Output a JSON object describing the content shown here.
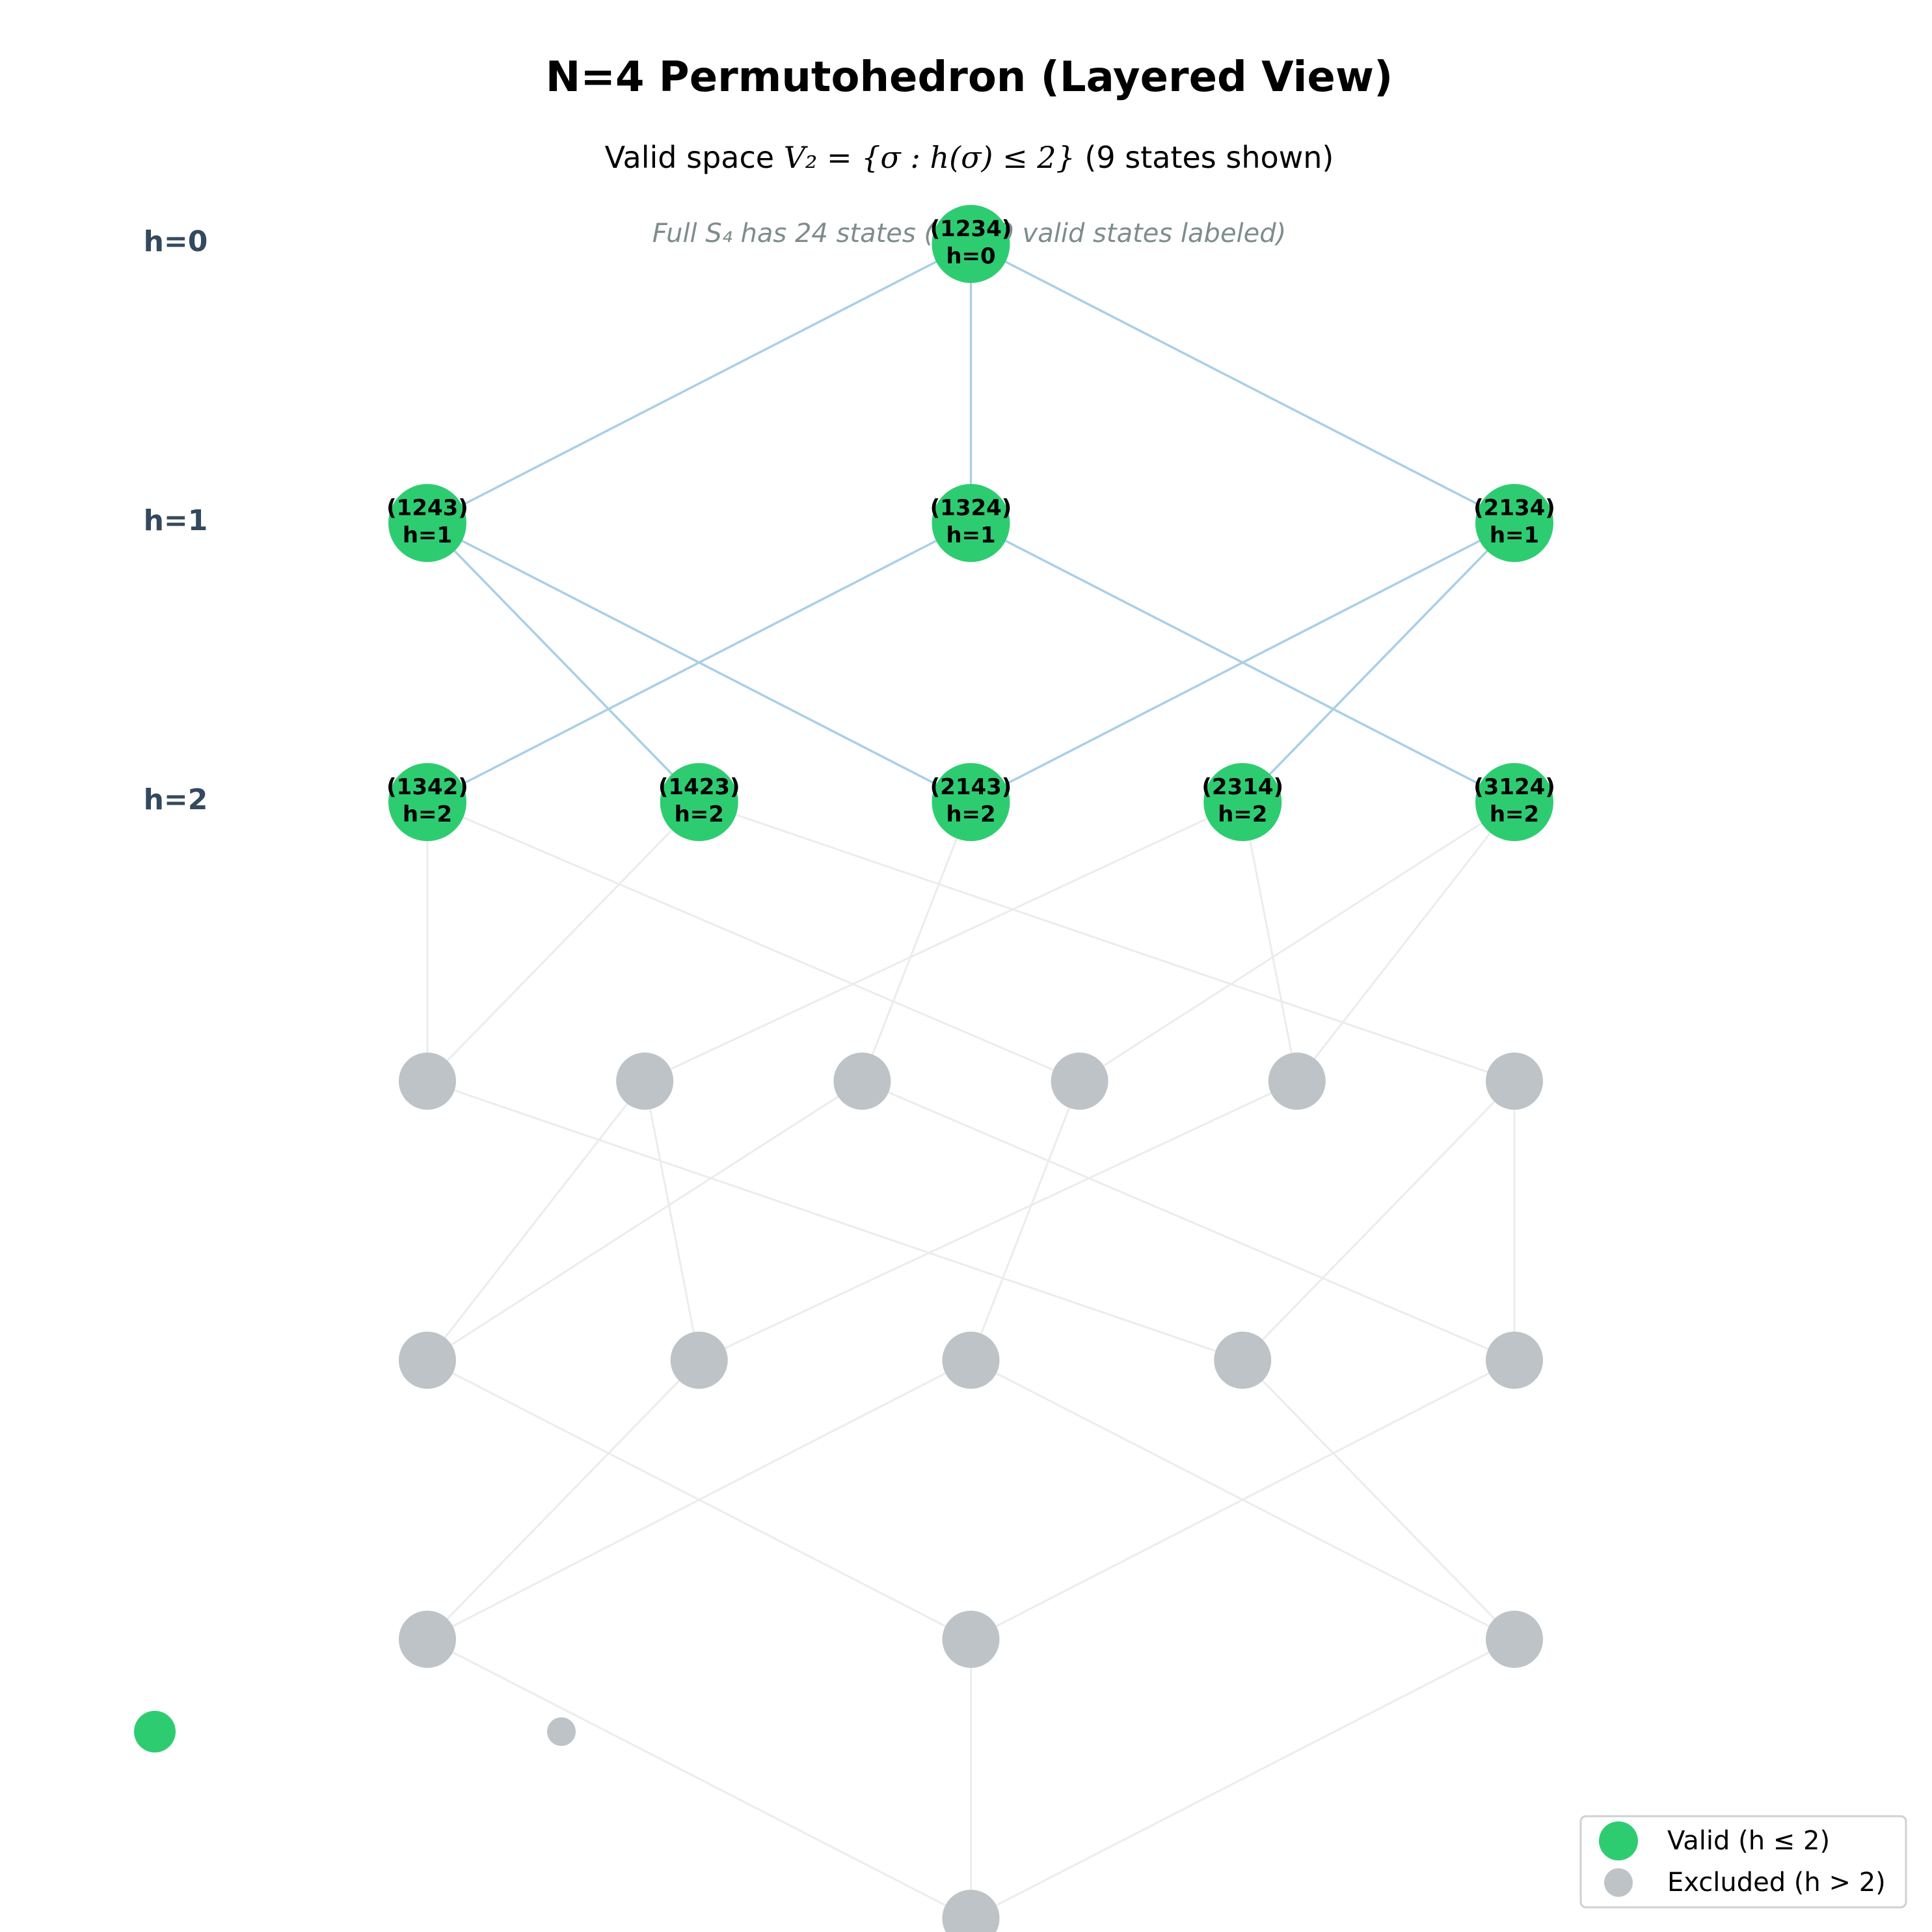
{
  "title": "N=4 Permutohedron (Layered View)",
  "subtitle": {
    "prefix": "Valid space ",
    "math": "V₂ = {σ : h(σ) ≤ 2}",
    "suffix": " (9 states shown)"
  },
  "note": "Full S₄ has 24 states (only 9 valid states labeled)",
  "layer_labels": [
    "h=0",
    "h=1",
    "h=2"
  ],
  "colors": {
    "valid": "#2ecc71",
    "excluded": "#bdc3c7",
    "valid_edge": "#a9cfe8",
    "excluded_edge": "#ececec"
  },
  "valid_nodes": [
    {
      "id": "1234",
      "label": "(1234)",
      "h_label": "h=0",
      "layer": 0,
      "slot": 3
    },
    {
      "id": "1243",
      "label": "(1243)",
      "h_label": "h=1",
      "layer": 1,
      "slot": 1
    },
    {
      "id": "1324",
      "label": "(1324)",
      "h_label": "h=1",
      "layer": 1,
      "slot": 3
    },
    {
      "id": "2134",
      "label": "(2134)",
      "h_label": "h=1",
      "layer": 1,
      "slot": 5
    },
    {
      "id": "1342",
      "label": "(1342)",
      "h_label": "h=2",
      "layer": 2,
      "slot": 1
    },
    {
      "id": "1423",
      "label": "(1423)",
      "h_label": "h=2",
      "layer": 2,
      "slot": 2
    },
    {
      "id": "2143",
      "label": "(2143)",
      "h_label": "h=2",
      "layer": 2,
      "slot": 3
    },
    {
      "id": "2314",
      "label": "(2314)",
      "h_label": "h=2",
      "layer": 2,
      "slot": 4
    },
    {
      "id": "3124",
      "label": "(3124)",
      "h_label": "h=2",
      "layer": 2,
      "slot": 5
    }
  ],
  "excluded_layers": [
    {
      "layer": 3,
      "count": 6
    },
    {
      "layer": 4,
      "count": 5
    },
    {
      "layer": 5,
      "count": 3
    },
    {
      "layer": 6,
      "count": 1
    }
  ],
  "valid_edges": [
    [
      "1234",
      "1243"
    ],
    [
      "1234",
      "1324"
    ],
    [
      "1234",
      "2134"
    ],
    [
      "1243",
      "1423"
    ],
    [
      "1243",
      "2143"
    ],
    [
      "1324",
      "1342"
    ],
    [
      "1324",
      "3124"
    ],
    [
      "2134",
      "2143"
    ],
    [
      "2134",
      "2314"
    ]
  ],
  "excluded_edges": [
    [
      "1342",
      "e3_0"
    ],
    [
      "1342",
      "e3_3"
    ],
    [
      "1423",
      "e3_0"
    ],
    [
      "1423",
      "e3_5"
    ],
    [
      "2143",
      "e3_2"
    ],
    [
      "2314",
      "e3_1"
    ],
    [
      "2314",
      "e3_4"
    ],
    [
      "3124",
      "e3_3"
    ],
    [
      "3124",
      "e3_4"
    ],
    [
      "e3_0",
      "e4_3"
    ],
    [
      "e3_1",
      "e4_0"
    ],
    [
      "e3_1",
      "e4_1"
    ],
    [
      "e3_2",
      "e4_0"
    ],
    [
      "e3_2",
      "e4_4"
    ],
    [
      "e3_3",
      "e4_2"
    ],
    [
      "e3_4",
      "e4_1"
    ],
    [
      "e3_5",
      "e4_3"
    ],
    [
      "e3_5",
      "e4_4"
    ],
    [
      "e4_0",
      "e5_1"
    ],
    [
      "e4_1",
      "e5_0"
    ],
    [
      "e4_2",
      "e5_0"
    ],
    [
      "e4_2",
      "e5_2"
    ],
    [
      "e4_3",
      "e5_2"
    ],
    [
      "e4_4",
      "e5_1"
    ],
    [
      "e5_0",
      "e6_0"
    ],
    [
      "e5_1",
      "e6_0"
    ],
    [
      "e5_2",
      "e6_0"
    ]
  ],
  "legend": {
    "valid_label": "Valid (h ≤ 2)",
    "excluded_label": "Excluded (h > 2)"
  }
}
